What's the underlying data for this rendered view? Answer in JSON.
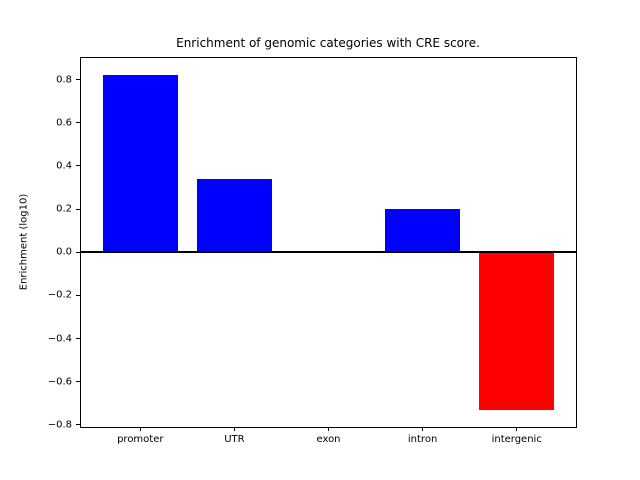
{
  "figure": {
    "background": "#ffffff"
  },
  "chart_data": {
    "type": "bar",
    "title": "Enrichment of genomic categories with CRE score.",
    "xlabel": "",
    "ylabel": "Enrichment (log10)",
    "categories": [
      "promoter",
      "UTR",
      "exon",
      "intron",
      "intergenic"
    ],
    "values": [
      0.82,
      0.34,
      0.0,
      0.2,
      -0.73
    ],
    "positive_color": "#0000ff",
    "negative_color": "#ff0000",
    "zero_line_color": "#000000",
    "bar_width": 0.8,
    "xlim": [
      -0.63,
      4.63
    ],
    "ylim": [
      -0.81,
      0.9
    ],
    "yticks": [
      0.8,
      0.6,
      0.4,
      0.2,
      0.0,
      -0.2,
      -0.4,
      -0.6,
      -0.8
    ],
    "ytick_labels": [
      "0.8",
      "0.6",
      "0.4",
      "0.2",
      "0.0",
      "−0.2",
      "−0.4",
      "−0.6",
      "−0.8"
    ],
    "grid": false,
    "legend": false,
    "zero_line": true
  }
}
